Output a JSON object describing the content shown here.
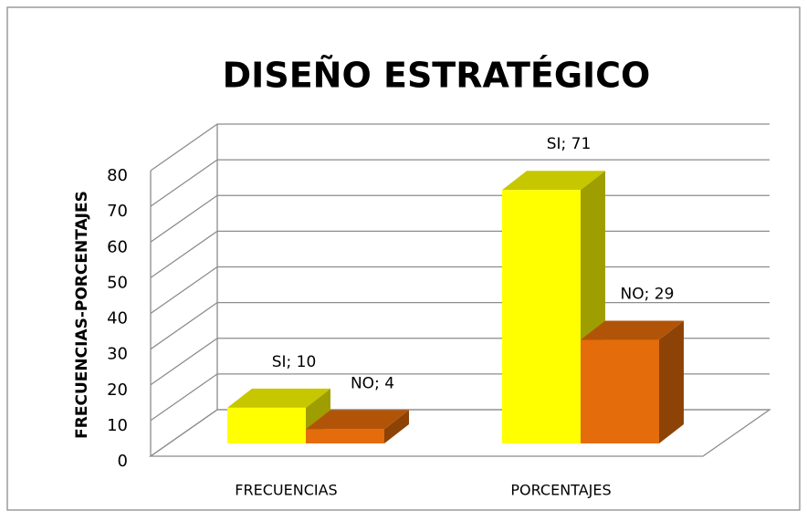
{
  "chart_data": {
    "type": "bar3d",
    "title": "DISEÑO ESTRATÉGICO",
    "y_label": "FRECUENCIAS-PORCENTAJES",
    "categories": [
      "FRECUENCIAS",
      "PORCENTAJES"
    ],
    "series": [
      {
        "name": "SI",
        "color": "#ffff00",
        "values": [
          10,
          71
        ],
        "value_labels": [
          "SI; 10",
          "SI; 71"
        ]
      },
      {
        "name": "NO",
        "color": "#e46c0a",
        "values": [
          4,
          29
        ],
        "value_labels": [
          "NO; 4",
          "NO; 29"
        ]
      }
    ],
    "ylim": [
      0,
      80
    ],
    "yticks": [
      0,
      10,
      20,
      30,
      40,
      50,
      60,
      70,
      80
    ],
    "grid": true
  }
}
